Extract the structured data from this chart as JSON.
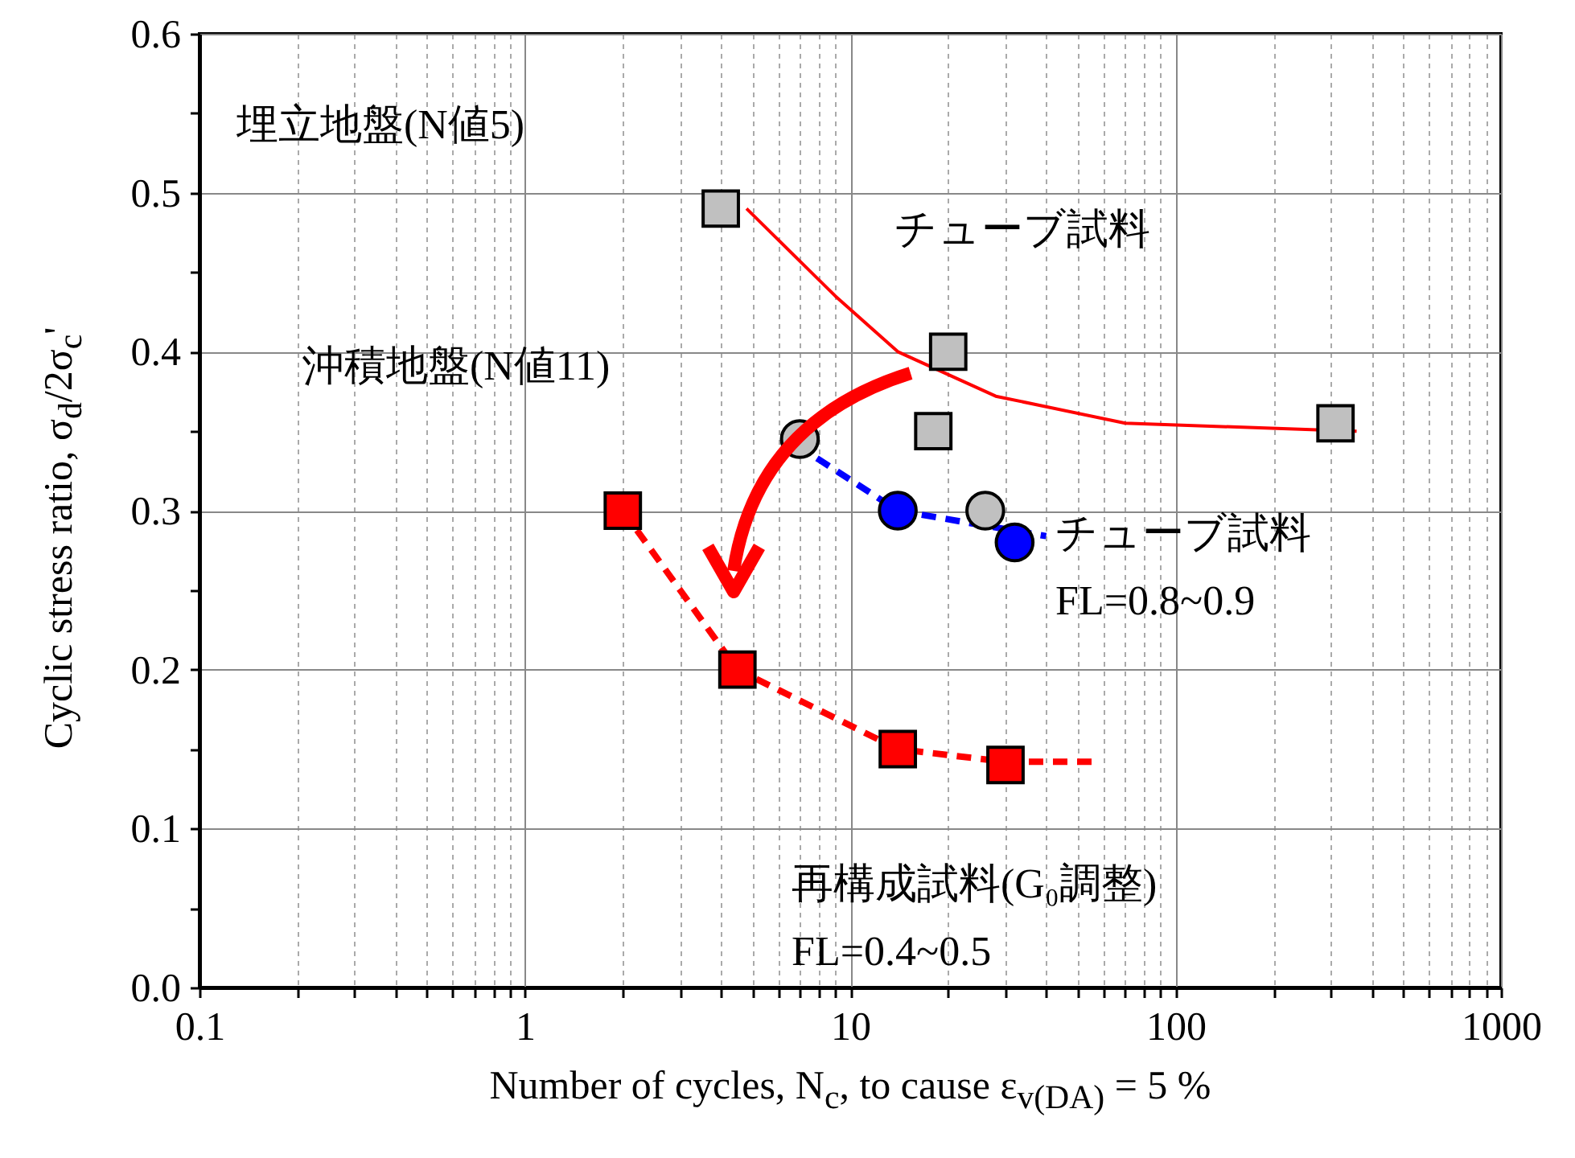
{
  "chart_data": {
    "type": "scatter",
    "xlabel": "Number of cycles, N$_{c}$, to cause ε$_{v(DA)}$ = 5 %",
    "ylabel": "Cyclic stress ratio, σ$_{d}$/2σ$_{c}$'",
    "log": "x",
    "grid": true,
    "xlim": [
      0.1,
      1000
    ],
    "ylim": [
      0,
      0.6
    ],
    "xticks": [
      0.1,
      {
        "value": 0.2,
        "label": null
      },
      {
        "value": 0.3,
        "label": null
      },
      {
        "value": 0.4,
        "label": null
      },
      {
        "value": 0.5,
        "label": null
      },
      {
        "value": 0.6,
        "label": null
      },
      {
        "value": 0.7,
        "label": null
      },
      {
        "value": 0.8,
        "label": null
      },
      {
        "value": 0.9,
        "label": null
      },
      1,
      {
        "value": 2,
        "label": null
      },
      {
        "value": 3,
        "label": null
      },
      {
        "value": 4,
        "label": null
      },
      {
        "value": 5,
        "label": null
      },
      {
        "value": 6,
        "label": null
      },
      {
        "value": 7,
        "label": null
      },
      {
        "value": 8,
        "label": null
      },
      {
        "value": 9,
        "label": null
      },
      10,
      {
        "value": 20,
        "label": null
      },
      {
        "value": 30,
        "label": null
      },
      {
        "value": 40,
        "label": null
      },
      {
        "value": 50,
        "label": null
      },
      {
        "value": 60,
        "label": null
      },
      {
        "value": 70,
        "label": null
      },
      {
        "value": 80,
        "label": null
      },
      {
        "value": 90,
        "label": null
      },
      100,
      {
        "value": 200,
        "label": null
      },
      {
        "value": 300,
        "label": null
      },
      {
        "value": 400,
        "label": null
      },
      {
        "value": 500,
        "label": null
      },
      {
        "value": 600,
        "label": null
      },
      {
        "value": 700,
        "label": null
      },
      {
        "value": 800,
        "label": null
      },
      {
        "value": 900,
        "label": null
      },
      1000
    ],
    "yticks": [
      {
        "value": 0,
        "label": "0.0"
      },
      {
        "value": 0.05,
        "label": null
      },
      0.1,
      {
        "value": 0.15,
        "label": null
      },
      0.2,
      {
        "value": 0.25,
        "label": null
      },
      0.3,
      {
        "value": 0.35,
        "label": null
      },
      0.4,
      {
        "value": 0.45,
        "label": null
      },
      0.5,
      {
        "value": 0.55,
        "label": null
      },
      0.6
    ],
    "series": [
      {
        "type": "line",
        "color": "#ff0000",
        "line_style": "solid",
        "marker": "none",
        "x": [
          4.8,
          9,
          14,
          28,
          70,
          360
        ],
        "values": [
          0.49,
          0.435,
          0.4,
          0.372,
          0.355,
          0.35
        ]
      },
      {
        "type": "line",
        "color": "#0000ff",
        "line_style": "dashed",
        "marker": "none",
        "x": [
          7.9,
          14,
          40
        ],
        "values": [
          0.333,
          0.3,
          0.284
        ]
      },
      {
        "type": "line",
        "color": "#ff0000",
        "line_style": "dashed",
        "marker": "none",
        "x": [
          2,
          4.5,
          14,
          30,
          57
        ],
        "values": [
          0.3,
          0.2,
          0.15,
          0.142,
          0.142
        ]
      },
      {
        "color": "#c0c0c0",
        "marker": "square",
        "x": [
          4,
          20,
          18,
          310
        ],
        "values": [
          0.49,
          0.4,
          0.35,
          0.355
        ]
      },
      {
        "color": "#c0c0c0",
        "marker": "circle",
        "x": [
          7,
          26
        ],
        "values": [
          0.345,
          0.3
        ]
      },
      {
        "color": "#0000ff",
        "marker": "circle",
        "x": [
          14,
          32
        ],
        "values": [
          0.3,
          0.28
        ]
      },
      {
        "color": "#ff0000",
        "marker": "square",
        "x": [
          2,
          4.5,
          14,
          30
        ],
        "values": [
          0.3,
          0.2,
          0.15,
          0.14
        ]
      }
    ],
    "annotations": [
      "埋立地盤(N値5)",
      "チューブ試料",
      "沖積地盤(N値11)",
      "チューブ試料\nFL=0.8~0.9",
      "再構成試料(G₀調整)\nFL=0.4~0.5"
    ]
  }
}
